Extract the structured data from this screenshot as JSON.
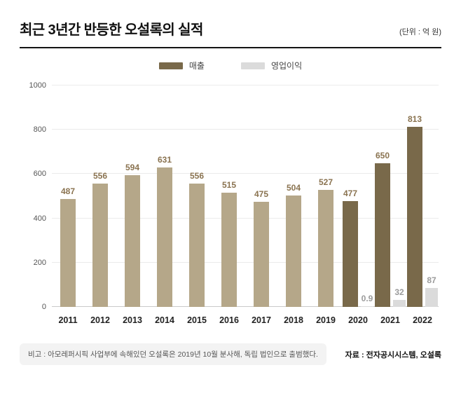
{
  "header": {
    "title": "최근 3년간 반등한 오설록의 실적",
    "unit": "(단위 : 억 원)"
  },
  "legend": {
    "revenue": "매출",
    "profit": "영업이익"
  },
  "colors": {
    "revenue_recent": "#79694a",
    "revenue_past": "#b5a789",
    "profit": "#dbdbdb",
    "value_label": "#8a7350",
    "profit_label": "#9b9b9b"
  },
  "chart_data": {
    "type": "bar",
    "title": "최근 3년간 반등한 오설록의 실적",
    "unit": "억 원",
    "categories": [
      "2011",
      "2012",
      "2013",
      "2014",
      "2015",
      "2016",
      "2017",
      "2018",
      "2019",
      "2020",
      "2021",
      "2022"
    ],
    "series": [
      {
        "name": "매출",
        "values": [
          487,
          556,
          594,
          631,
          556,
          515,
          475,
          504,
          527,
          477,
          650,
          813
        ]
      },
      {
        "name": "영업이익",
        "values": [
          null,
          null,
          null,
          null,
          null,
          null,
          null,
          null,
          null,
          0.9,
          32,
          87
        ]
      }
    ],
    "ylim": [
      0,
      1000
    ],
    "yticks": [
      0,
      200,
      400,
      600,
      800,
      1000
    ],
    "highlight_from_index": 9,
    "grid": true,
    "legend_position": "top"
  },
  "footer": {
    "note": "비고 : 아모레퍼시픽 사업부에 속해있던 오설록은 2019년 10월 분사해, 독립 법인으로 출범했다.",
    "source": "자료 : 전자공시시스템, 오설록"
  }
}
